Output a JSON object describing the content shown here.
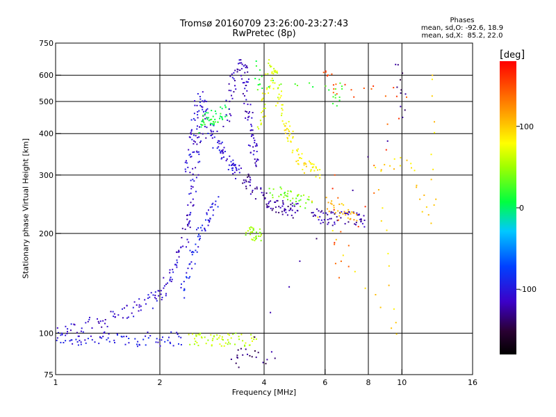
{
  "header": {
    "title_line1": "Tromsø 20160709 23:26:00-23:27:43",
    "title_line2": "RwPretec (8p)"
  },
  "stats": {
    "heading": "Phases",
    "line_o": "mean, sd,O: -92.6, 18.9",
    "line_x": "mean, sd,X:  85.2, 22.0"
  },
  "colorbar": {
    "unit": "deg",
    "min": -180,
    "max": 180,
    "ticks": [
      {
        "value": 100,
        "label": "100"
      },
      {
        "value": 0,
        "label": "0"
      },
      {
        "value": -100,
        "label": "-100"
      }
    ]
  },
  "chart_data": {
    "type": "scatter",
    "xlabel": "Frequency [MHz]",
    "ylabel": "Stationary phase Virtual Height [km]",
    "xscale": "log",
    "yscale": "log",
    "xlim": [
      1,
      16
    ],
    "ylim": [
      75,
      750
    ],
    "grid": true,
    "x_ticks": [
      {
        "value": 1,
        "label": "1"
      },
      {
        "value": 2,
        "label": "2"
      },
      {
        "value": 4,
        "label": "4"
      },
      {
        "value": 6,
        "label": "6"
      },
      {
        "value": 8,
        "label": "8"
      },
      {
        "value": 10,
        "label": "10"
      },
      {
        "value": 16,
        "label": "16"
      }
    ],
    "x_grid": [
      2,
      4,
      6,
      8,
      10
    ],
    "y_ticks": [
      {
        "value": 75,
        "label": "75"
      },
      {
        "value": 100,
        "label": "100"
      },
      {
        "value": 200,
        "label": "200"
      },
      {
        "value": 300,
        "label": "300"
      },
      {
        "value": 400,
        "label": "400"
      },
      {
        "value": 500,
        "label": "500"
      },
      {
        "value": 600,
        "label": "600"
      },
      {
        "value": 750,
        "label": "750"
      }
    ],
    "y_grid": [
      100,
      200,
      300,
      400,
      500,
      600
    ],
    "traces": [
      {
        "phase": -100,
        "points": [
          [
            1.0,
            97
          ],
          [
            1.1,
            96
          ],
          [
            1.2,
            96
          ],
          [
            1.35,
            96
          ],
          [
            1.5,
            96
          ],
          [
            1.7,
            96
          ],
          [
            1.9,
            96
          ],
          [
            2.1,
            96
          ],
          [
            2.3,
            97
          ]
        ]
      },
      {
        "phase": 60,
        "points": [
          [
            2.45,
            96
          ],
          [
            2.6,
            96
          ],
          [
            2.8,
            96
          ],
          [
            3.0,
            96
          ],
          [
            3.2,
            96
          ],
          [
            3.5,
            96
          ],
          [
            3.8,
            96
          ]
        ]
      },
      {
        "phase": -110,
        "points": [
          [
            1.0,
            100
          ],
          [
            1.15,
            103
          ],
          [
            1.3,
            107
          ],
          [
            1.45,
            112
          ],
          [
            1.6,
            116
          ],
          [
            1.75,
            121
          ],
          [
            1.9,
            126
          ],
          [
            2.0,
            132
          ],
          [
            2.1,
            142
          ],
          [
            2.2,
            158
          ],
          [
            2.3,
            178
          ],
          [
            2.4,
            205
          ],
          [
            2.45,
            235
          ],
          [
            2.5,
            270
          ],
          [
            2.55,
            320
          ],
          [
            2.6,
            380
          ],
          [
            2.7,
            420
          ]
        ]
      },
      {
        "phase": -95,
        "points": [
          [
            2.3,
            130
          ],
          [
            2.4,
            150
          ],
          [
            2.5,
            175
          ],
          [
            2.6,
            195
          ],
          [
            2.7,
            215
          ],
          [
            2.8,
            230
          ],
          [
            2.9,
            250
          ]
        ]
      },
      {
        "phase": -105,
        "points": [
          [
            2.4,
            300
          ],
          [
            2.45,
            350
          ],
          [
            2.5,
            400
          ],
          [
            2.55,
            460
          ],
          [
            2.6,
            520
          ],
          [
            2.7,
            480
          ],
          [
            2.8,
            420
          ],
          [
            2.9,
            380
          ],
          [
            3.0,
            360
          ],
          [
            3.1,
            340
          ],
          [
            3.2,
            320
          ],
          [
            3.3,
            310
          ],
          [
            3.4,
            305
          ]
        ]
      },
      {
        "phase": 10,
        "points": [
          [
            2.6,
            420
          ],
          [
            2.7,
            440
          ],
          [
            2.8,
            450
          ],
          [
            2.9,
            440
          ],
          [
            3.0,
            460
          ],
          [
            3.1,
            480
          ]
        ]
      },
      {
        "phase": -115,
        "points": [
          [
            3.1,
            420
          ],
          [
            3.2,
            520
          ],
          [
            3.3,
            600
          ],
          [
            3.4,
            640
          ],
          [
            3.5,
            630
          ],
          [
            3.55,
            560
          ],
          [
            3.6,
            480
          ],
          [
            3.65,
            420
          ],
          [
            3.7,
            380
          ],
          [
            3.75,
            350
          ],
          [
            3.8,
            330
          ]
        ]
      },
      {
        "phase": -125,
        "points": [
          [
            3.5,
            290
          ],
          [
            3.6,
            285
          ],
          [
            3.8,
            270
          ],
          [
            4.0,
            255
          ],
          [
            4.2,
            245
          ],
          [
            4.4,
            240
          ],
          [
            4.6,
            238
          ],
          [
            4.8,
            236
          ],
          [
            5.0,
            234
          ]
        ]
      },
      {
        "phase": 70,
        "points": [
          [
            3.9,
            420
          ],
          [
            4.0,
            480
          ],
          [
            4.1,
            560
          ],
          [
            4.2,
            640
          ],
          [
            4.3,
            600
          ],
          [
            4.4,
            520
          ],
          [
            4.5,
            460
          ]
        ]
      },
      {
        "phase": 85,
        "points": [
          [
            4.6,
            430
          ],
          [
            4.7,
            400
          ],
          [
            4.8,
            380
          ],
          [
            5.0,
            340
          ],
          [
            5.2,
            320
          ],
          [
            5.5,
            310
          ],
          [
            5.8,
            300
          ]
        ]
      },
      {
        "phase": 40,
        "points": [
          [
            4.2,
            270
          ],
          [
            4.5,
            262
          ],
          [
            4.8,
            255
          ],
          [
            5.0,
            250
          ],
          [
            5.5,
            248
          ]
        ]
      },
      {
        "phase": -120,
        "points": [
          [
            5.5,
            228
          ],
          [
            5.8,
            225
          ],
          [
            6.2,
            222
          ],
          [
            6.5,
            222
          ],
          [
            7.0,
            222
          ],
          [
            7.5,
            220
          ],
          [
            7.8,
            219
          ]
        ]
      },
      {
        "phase": 110,
        "points": [
          [
            6.0,
            245
          ],
          [
            6.5,
            238
          ],
          [
            7.0,
            232
          ],
          [
            7.4,
            228
          ]
        ]
      },
      {
        "phase": 50,
        "points": [
          [
            3.6,
            200
          ],
          [
            3.7,
            198
          ],
          [
            3.8,
            202
          ],
          [
            3.9,
            196
          ]
        ]
      },
      {
        "phase": 150,
        "points": [
          [
            5.9,
            620
          ],
          [
            6.5,
            540
          ],
          [
            10.1,
            530
          ],
          [
            6.6,
            145
          ],
          [
            6.4,
            300
          ]
        ]
      },
      {
        "phase": 95,
        "points": [
          [
            12.2,
            620
          ],
          [
            12.3,
            210
          ],
          [
            10.5,
            330
          ],
          [
            8.5,
            320
          ],
          [
            9.8,
            95
          ],
          [
            5.5,
            250
          ]
        ]
      },
      {
        "phase": -135,
        "points": [
          [
            9.7,
            640
          ],
          [
            10.2,
            460
          ],
          [
            3.3,
            82
          ],
          [
            3.5,
            88
          ],
          [
            4.3,
            84
          ]
        ]
      },
      {
        "phase": 20,
        "points": [
          [
            6.4,
            500
          ],
          [
            6.6,
            560
          ],
          [
            3.9,
            550
          ],
          [
            3.8,
            640
          ]
        ]
      }
    ]
  }
}
